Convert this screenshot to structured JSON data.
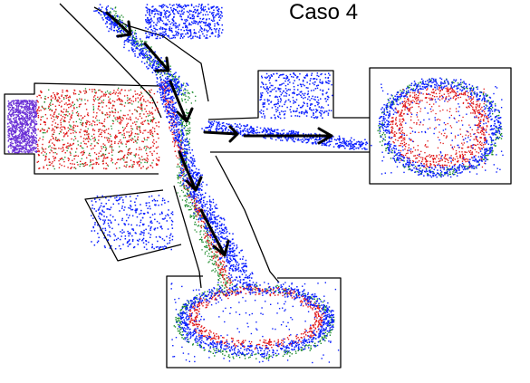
{
  "figure": {
    "title": "Caso 4"
  },
  "colors": {
    "background": "#ffffff",
    "walls": "#000000",
    "trajectory_blue": "#0a1fff",
    "trajectory_red": "#e11a1a",
    "trajectory_green": "#1a8a2a",
    "trajectory_purple": "#6a2fd6",
    "arrow": "#000000"
  },
  "legend": []
}
